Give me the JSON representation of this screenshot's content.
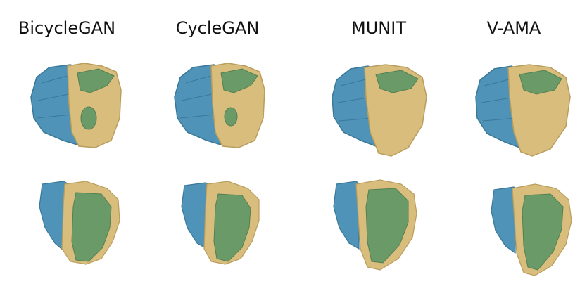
{
  "columns": [
    {
      "title": "BicycleGAN"
    },
    {
      "title": "CycleGAN"
    },
    {
      "title": "MUNIT"
    },
    {
      "title": "V-AMA"
    }
  ],
  "colors": {
    "blue": "#4f93b8",
    "blue_dark": "#3a7898",
    "tan": "#d8bd7c",
    "tan_dark": "#b99d5c",
    "green": "#6a9a68",
    "green_dark": "#557f53"
  }
}
